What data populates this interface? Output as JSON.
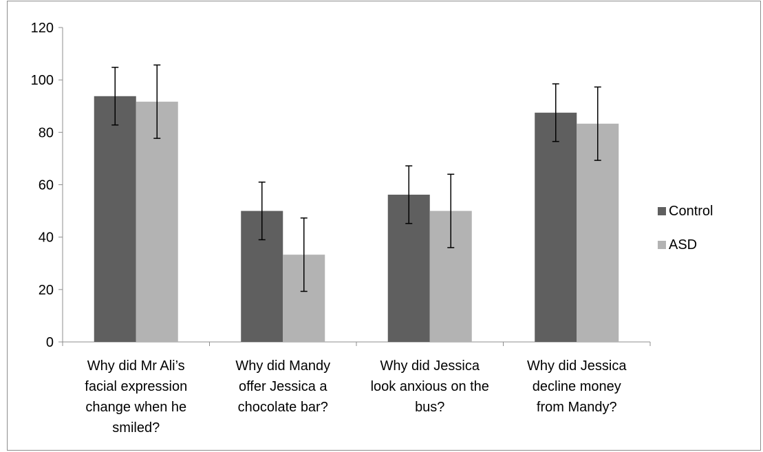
{
  "chart_data": {
    "type": "bar",
    "title": "",
    "xlabel": "",
    "ylabel": "",
    "ylim": [
      0,
      120
    ],
    "yticks": [
      0,
      20,
      40,
      60,
      80,
      100,
      120
    ],
    "grid": false,
    "legend_position": "right",
    "categories": [
      [
        "Why did Mr Ali’s",
        "facial expression",
        "change when he",
        "smiled?"
      ],
      [
        "Why did Mandy",
        "offer Jessica a",
        "chocolate bar?"
      ],
      [
        "Why did Jessica",
        "look anxious on the",
        "bus?"
      ],
      [
        "Why did Jessica",
        "decline money",
        "from Mandy?"
      ]
    ],
    "series": [
      {
        "name": "Control",
        "color": "#5f5f5f",
        "values": [
          93.8,
          50.0,
          56.2,
          87.5
        ],
        "error": [
          11.0,
          11.0,
          11.0,
          11.0
        ]
      },
      {
        "name": "ASD",
        "color": "#b3b3b3",
        "values": [
          91.7,
          33.3,
          50.0,
          83.3
        ],
        "error": [
          14.0,
          14.0,
          14.0,
          14.0
        ]
      }
    ]
  }
}
